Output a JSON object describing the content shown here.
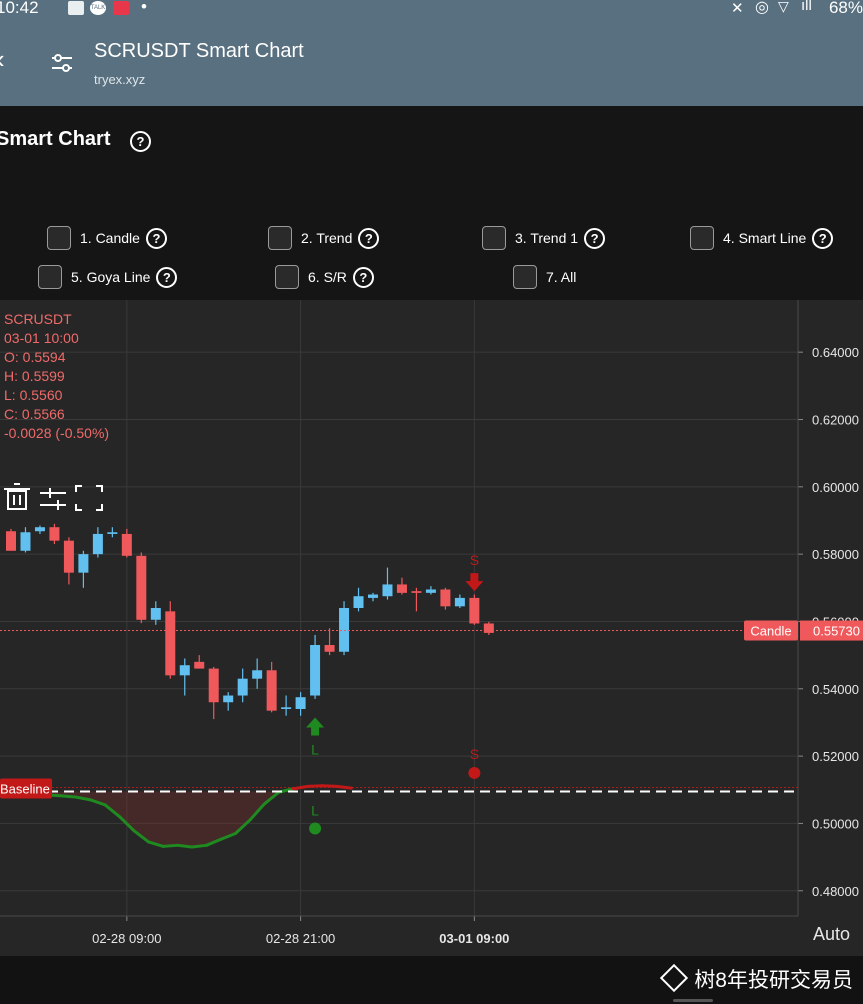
{
  "status_bar": {
    "time": "10:42",
    "battery": "68%",
    "badge": "TALK"
  },
  "app_bar": {
    "back_icon": "back-arrow-icon",
    "title": "SCRUSDT Smart Chart",
    "subtitle": "tryex.xyz"
  },
  "page": {
    "heading": "Smart Chart",
    "help_glyph": "?"
  },
  "options": [
    {
      "label": "1. Candle"
    },
    {
      "label": "2. Trend"
    },
    {
      "label": "3. Trend 1"
    },
    {
      "label": "4. Smart Line"
    },
    {
      "label": "5. Goya Line"
    },
    {
      "label": "6. S/R"
    },
    {
      "label": "7. All"
    }
  ],
  "legend": {
    "symbol": "SCRUSDT",
    "datetime": "03-01 10:00",
    "open": "O: 0.5594",
    "high": "H: 0.5599",
    "low": "L: 0.5560",
    "close": "C: 0.5566",
    "change": "-0.0028 (-0.50%)"
  },
  "markers": {
    "signal_buy": "L",
    "signal_sell": "S"
  },
  "price_tag": {
    "label": "Candle",
    "value": "0.55730"
  },
  "baseline_tag": "Baseline",
  "scale_mode": "Auto",
  "watermark": "树8年投研交易员",
  "colors": {
    "up": "#62c0f0",
    "down": "#f0595c",
    "trend_low": "#1f8a1f",
    "trend_high": "#c21818"
  },
  "chart_data": {
    "type": "candlestick",
    "y_ticks": [
      "0.64000",
      "0.62000",
      "0.60000",
      "0.58000",
      "0.56000",
      "0.54000",
      "0.52000",
      "0.50000",
      "0.48000"
    ],
    "ylim": [
      0.4725,
      0.6555
    ],
    "x_ticks": [
      "02-28 09:00",
      "02-28 21:00",
      "03-01 09:00"
    ],
    "x_tick_bars": [
      8,
      20,
      32
    ],
    "last_price": 0.5573,
    "baseline": 0.5095,
    "candles": [
      {
        "o": 0.5868,
        "h": 0.5875,
        "l": 0.581,
        "c": 0.581
      },
      {
        "o": 0.581,
        "h": 0.588,
        "l": 0.5805,
        "c": 0.5865
      },
      {
        "o": 0.5868,
        "h": 0.5885,
        "l": 0.586,
        "c": 0.588
      },
      {
        "o": 0.588,
        "h": 0.589,
        "l": 0.583,
        "c": 0.584
      },
      {
        "o": 0.584,
        "h": 0.585,
        "l": 0.571,
        "c": 0.5745
      },
      {
        "o": 0.5745,
        "h": 0.581,
        "l": 0.57,
        "c": 0.58
      },
      {
        "o": 0.58,
        "h": 0.588,
        "l": 0.579,
        "c": 0.586
      },
      {
        "o": 0.586,
        "h": 0.588,
        "l": 0.585,
        "c": 0.5865
      },
      {
        "o": 0.586,
        "h": 0.5875,
        "l": 0.579,
        "c": 0.5795
      },
      {
        "o": 0.5795,
        "h": 0.5805,
        "l": 0.5595,
        "c": 0.5605
      },
      {
        "o": 0.5605,
        "h": 0.566,
        "l": 0.559,
        "c": 0.564
      },
      {
        "o": 0.563,
        "h": 0.566,
        "l": 0.543,
        "c": 0.544
      },
      {
        "o": 0.544,
        "h": 0.549,
        "l": 0.538,
        "c": 0.547
      },
      {
        "o": 0.548,
        "h": 0.55,
        "l": 0.546,
        "c": 0.546
      },
      {
        "o": 0.546,
        "h": 0.5465,
        "l": 0.531,
        "c": 0.536
      },
      {
        "o": 0.536,
        "h": 0.539,
        "l": 0.5335,
        "c": 0.538
      },
      {
        "o": 0.538,
        "h": 0.546,
        "l": 0.536,
        "c": 0.543
      },
      {
        "o": 0.543,
        "h": 0.549,
        "l": 0.54,
        "c": 0.5455
      },
      {
        "o": 0.5455,
        "h": 0.548,
        "l": 0.533,
        "c": 0.5335
      },
      {
        "o": 0.534,
        "h": 0.538,
        "l": 0.532,
        "c": 0.5345
      },
      {
        "o": 0.534,
        "h": 0.539,
        "l": 0.532,
        "c": 0.5375
      },
      {
        "o": 0.538,
        "h": 0.556,
        "l": 0.537,
        "c": 0.553
      },
      {
        "o": 0.553,
        "h": 0.558,
        "l": 0.55,
        "c": 0.551
      },
      {
        "o": 0.551,
        "h": 0.566,
        "l": 0.55,
        "c": 0.564
      },
      {
        "o": 0.564,
        "h": 0.57,
        "l": 0.563,
        "c": 0.5675
      },
      {
        "o": 0.567,
        "h": 0.5685,
        "l": 0.566,
        "c": 0.568
      },
      {
        "o": 0.5675,
        "h": 0.576,
        "l": 0.5665,
        "c": 0.571
      },
      {
        "o": 0.571,
        "h": 0.573,
        "l": 0.568,
        "c": 0.5685
      },
      {
        "o": 0.569,
        "h": 0.57,
        "l": 0.563,
        "c": 0.5685
      },
      {
        "o": 0.5685,
        "h": 0.5705,
        "l": 0.568,
        "c": 0.5695
      },
      {
        "o": 0.5695,
        "h": 0.57,
        "l": 0.5635,
        "c": 0.5645
      },
      {
        "o": 0.5645,
        "h": 0.568,
        "l": 0.564,
        "c": 0.567
      },
      {
        "o": 0.567,
        "h": 0.568,
        "l": 0.559,
        "c": 0.5594
      },
      {
        "o": 0.5594,
        "h": 0.5599,
        "l": 0.556,
        "c": 0.5566
      }
    ],
    "trend": [
      0.5095,
      0.5085,
      0.5082,
      0.5078,
      0.507,
      0.5055,
      0.502,
      0.4978,
      0.4945,
      0.4932,
      0.4935,
      0.493,
      0.4935,
      0.4953,
      0.497,
      0.501,
      0.5058,
      0.5093,
      0.5103,
      0.511,
      0.5112,
      0.511,
      0.5105
    ],
    "trend_start_bar": 1.5,
    "buy_signals": [
      {
        "bar": 21,
        "price": 0.5285,
        "dot": 0.4985
      }
    ],
    "sell_signals": [
      {
        "bar": 32,
        "price": 0.572,
        "dot": 0.515
      }
    ]
  }
}
